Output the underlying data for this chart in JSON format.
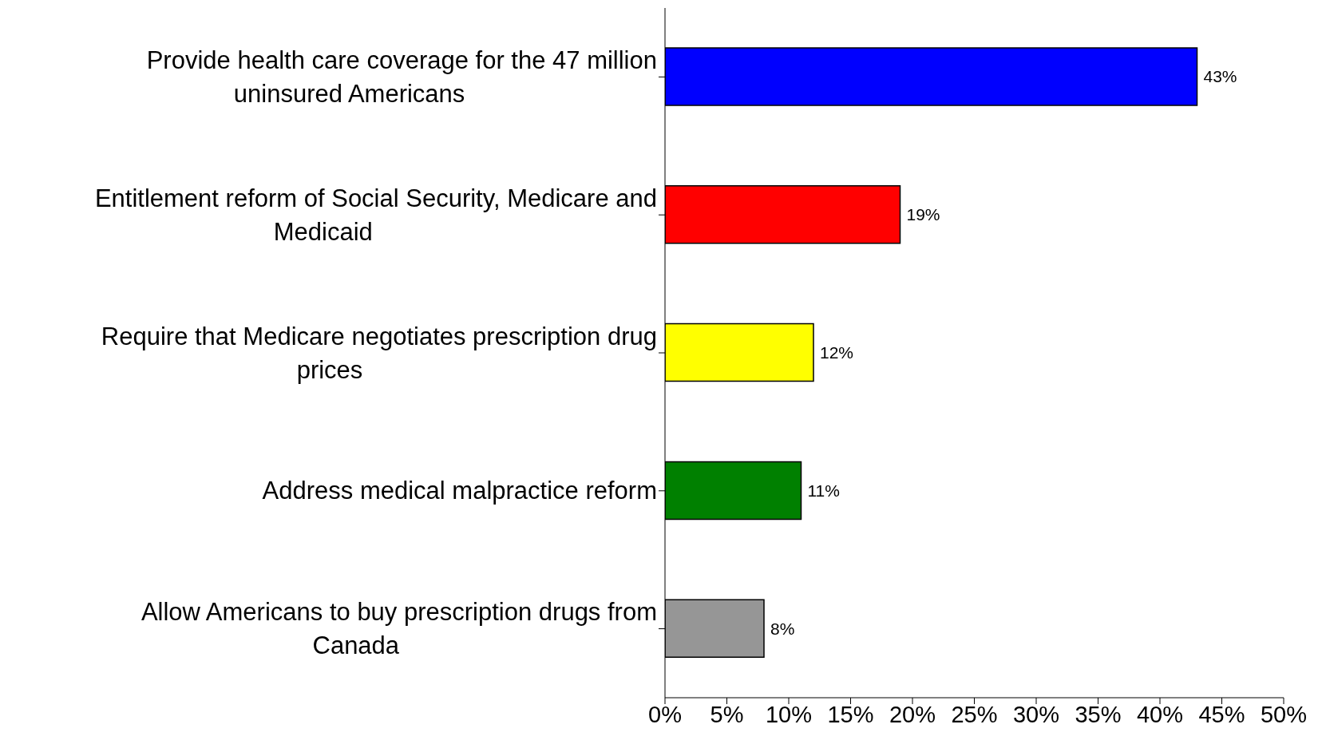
{
  "chart_data": {
    "type": "bar",
    "orientation": "horizontal",
    "categories": [
      "Provide health care coverage for the 47 million uninsured Americans",
      "Entitlement reform of Social Security, Medicare and Medicaid",
      "Require that Medicare negotiates prescription drug prices",
      "Address medical malpractice reform",
      "Allow Americans to buy prescription drugs from Canada"
    ],
    "values": [
      43,
      19,
      12,
      11,
      8
    ],
    "colors": [
      "#0000ff",
      "#ff0000",
      "#ffff00",
      "#008000",
      "#969696"
    ],
    "value_labels": [
      "43%",
      "19%",
      "12%",
      "11%",
      "8%"
    ],
    "xlim": [
      0,
      50
    ],
    "xticks": [
      {
        "value": 0,
        "label": "0%"
      },
      {
        "value": 5,
        "label": "5%"
      },
      {
        "value": 10,
        "label": "10%"
      },
      {
        "value": 15,
        "label": "15%"
      },
      {
        "value": 20,
        "label": "20%"
      },
      {
        "value": 25,
        "label": "25%"
      },
      {
        "value": 30,
        "label": "30%"
      },
      {
        "value": 35,
        "label": "35%"
      },
      {
        "value": 40,
        "label": "40%"
      },
      {
        "value": 45,
        "label": "45%"
      },
      {
        "value": 50,
        "label": "50%"
      }
    ],
    "grid": false,
    "legend": false
  }
}
